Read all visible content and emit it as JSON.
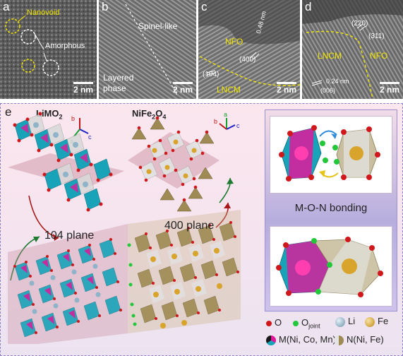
{
  "panels": {
    "a": {
      "label": "a",
      "annotations": [
        "Nanovoid",
        "Amorphous"
      ],
      "scale": "2 nm"
    },
    "b": {
      "label": "b",
      "annotations": [
        "Spinel-like",
        "Layered",
        "phase"
      ],
      "scale": "2 nm"
    },
    "c": {
      "label": "c",
      "annotations": [
        "NFO",
        "0.48 nm",
        "(400)",
        "(104)",
        "LNCM"
      ],
      "scale": "2 nm"
    },
    "d": {
      "label": "d",
      "annotations": [
        "(220)",
        "(311)",
        "LNCM",
        "NFO",
        "0.24 nm",
        "(006)"
      ],
      "scale": "2 nm"
    }
  },
  "panel_e": {
    "label": "e",
    "crystal_left": "LiMO",
    "crystal_left_sub": "2",
    "crystal_right_parts": [
      "NiFe",
      "2",
      "O",
      "4"
    ],
    "axes_left": [
      "b",
      "c",
      "a"
    ],
    "axes_right": [
      "b",
      "c",
      "a"
    ],
    "plane_104": "104 plane",
    "plane_400": "400 plane",
    "bonding_label": "M-O-N bonding",
    "legend": {
      "o": "O",
      "ojoint": "O",
      "ojoint_sub": "joint",
      "li": "Li",
      "fe": "Fe",
      "m": "M(Ni, Co, Mn)",
      "n": "N(Ni, Fe)"
    }
  },
  "colors": {
    "oxygen": "#d0181c",
    "ojoint": "#22c83a",
    "li": "#8fb3c8",
    "fe": "#d9a42b",
    "m_magenta": "#e0199a",
    "m_cyan": "#19a3b8",
    "n_tan": "#9e8a52",
    "annotation": "#f2e600"
  }
}
